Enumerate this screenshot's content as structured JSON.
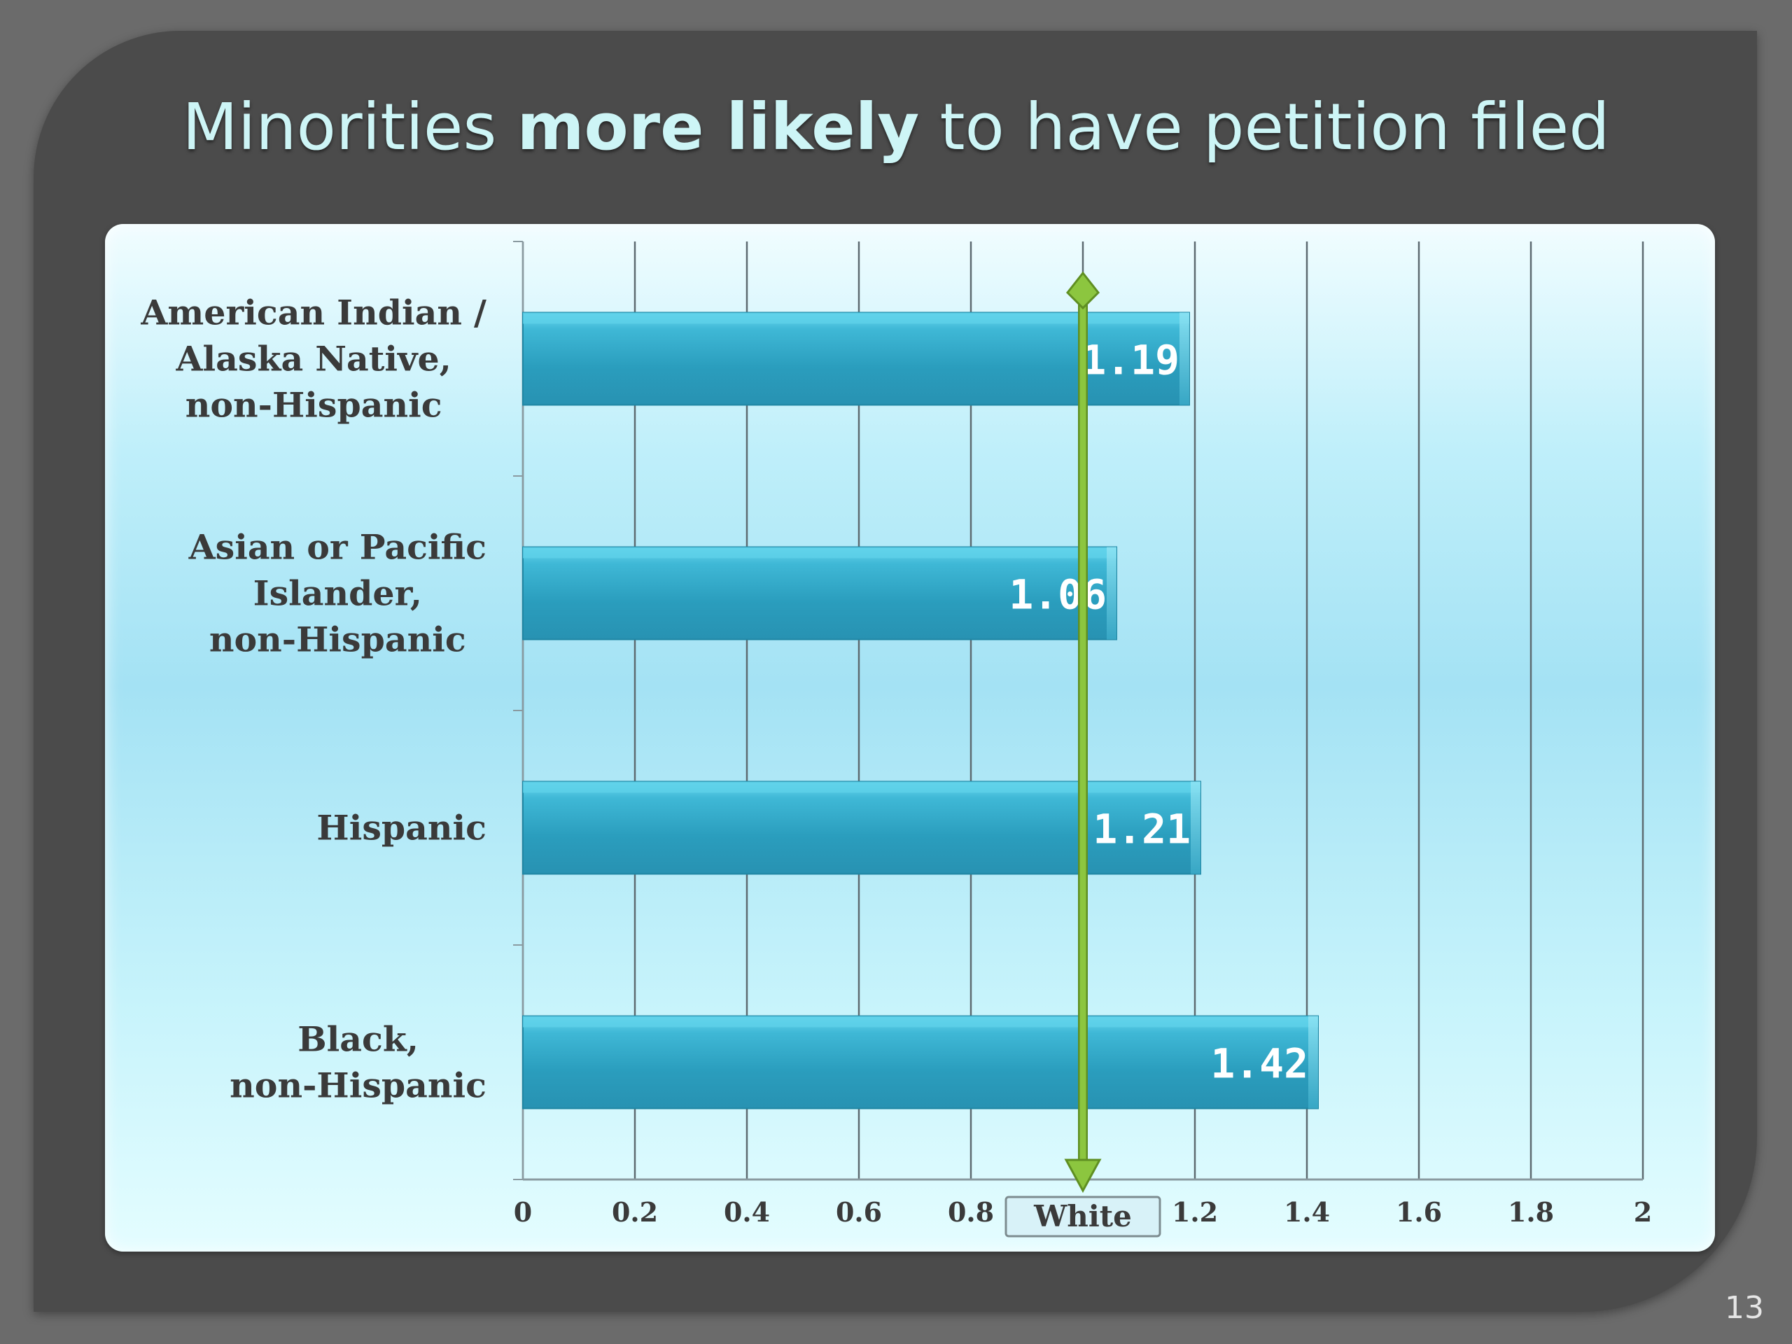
{
  "slide": {
    "title_pre": "Minorities ",
    "title_bold": "more likely",
    "title_post": " to have petition filed",
    "page_number": "13"
  },
  "colors": {
    "bar": "#2ea0bf",
    "bar_top": "#5fd2ea",
    "reference_line": "#8cc63f"
  },
  "chart_data": {
    "type": "bar",
    "orientation": "horizontal",
    "categories": [
      "American Indian / Alaska Native, non-Hispanic",
      "Asian or Pacific Islander, non-Hispanic",
      "Hispanic",
      "Black, non-Hispanic"
    ],
    "category_lines": [
      [
        "American Indian /",
        "Alaska Native,",
        "non-Hispanic"
      ],
      [
        "Asian or Pacific",
        "Islander,",
        "non-Hispanic"
      ],
      [
        "Hispanic"
      ],
      [
        "Black,",
        "non-Hispanic"
      ]
    ],
    "values": [
      1.19,
      1.06,
      1.21,
      1.42
    ],
    "value_labels": [
      "1.19",
      "1.06",
      "1.21",
      "1.42"
    ],
    "xlim": [
      0,
      2
    ],
    "xticks": [
      0,
      0.2,
      0.4,
      0.6,
      0.8,
      1.0,
      1.2,
      1.4,
      1.6,
      1.8,
      2
    ],
    "xtick_labels": [
      "0",
      "0.2",
      "0.4",
      "0.6",
      "0.8",
      "",
      "1.2",
      "1.4",
      "1.6",
      "1.8",
      "2"
    ],
    "grid": true,
    "reference_line": {
      "value": 1.0,
      "label": "White"
    }
  }
}
